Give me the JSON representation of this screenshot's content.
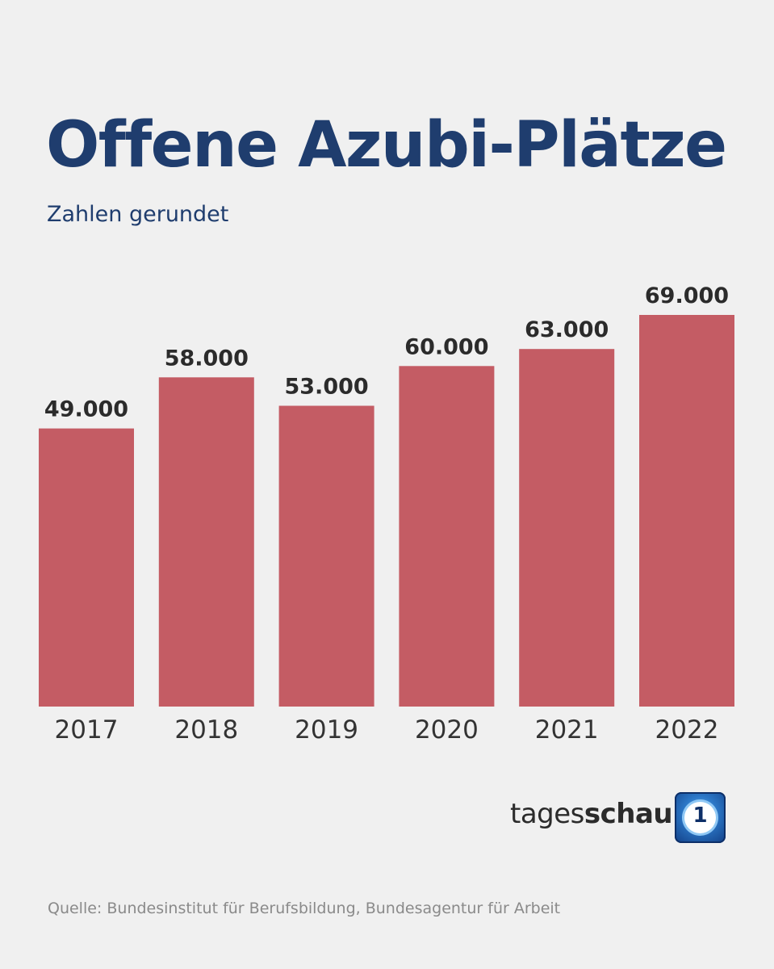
{
  "header": {
    "title": "Offene Azubi-Plätze",
    "subtitle": "Zahlen gerundet"
  },
  "brand": {
    "name_light": "tages",
    "name_bold": "schau",
    "logo_icon": "ard-one-logo-icon",
    "logo_mark": "1"
  },
  "footer": {
    "source": "Quelle: Bundesinstitut für Berufsbildung, Bundesagentur für Arbeit"
  },
  "colors": {
    "background": "#f0f0f0",
    "title": "#1f3d6e",
    "bar": "#c45c64",
    "value_label": "#2b2b2b",
    "tick_label": "#333333"
  },
  "chart_data": {
    "type": "bar",
    "categories": [
      "2017",
      "2018",
      "2019",
      "2020",
      "2021",
      "2022"
    ],
    "values": [
      49000,
      58000,
      53000,
      60000,
      63000,
      69000
    ],
    "value_labels": [
      "49.000",
      "58.000",
      "53.000",
      "60.000",
      "63.000",
      "69.000"
    ],
    "title": "Offene Azubi-Plätze",
    "subtitle": "Zahlen gerundet",
    "xlabel": "",
    "ylabel": "",
    "ylim": [
      0,
      69000
    ],
    "grid": false,
    "legend": "none"
  }
}
